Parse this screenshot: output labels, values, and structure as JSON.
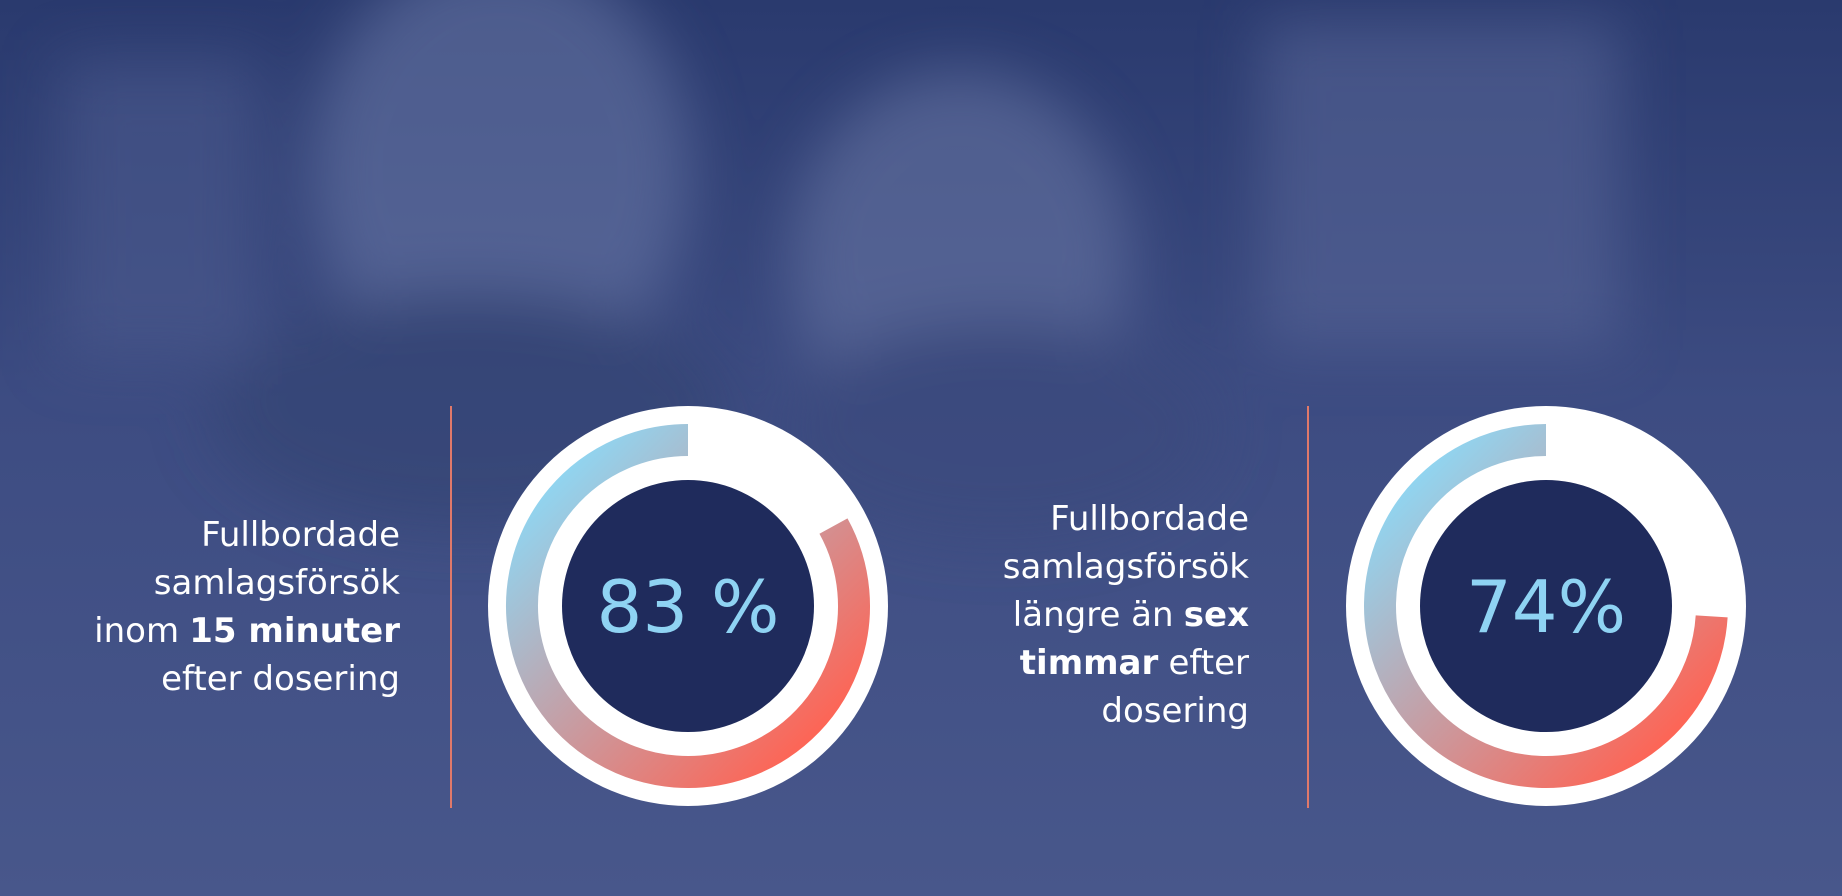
{
  "chart_data": [
    {
      "type": "donut",
      "values": [
        83
      ],
      "value_labels": [
        "83 %"
      ],
      "gradient": [
        "#8fd6f2",
        "#ff6353"
      ],
      "description_lines": [
        [
          {
            "text": "Fullbordade"
          }
        ],
        [
          {
            "text": "samlagsförsök"
          }
        ],
        [
          {
            "text": "inom"
          },
          {
            "text": "15 minuter",
            "bold": true
          }
        ],
        [
          {
            "text": "efter dosering"
          }
        ]
      ]
    },
    {
      "type": "donut",
      "values": [
        74
      ],
      "value_labels": [
        "74%"
      ],
      "gradient": [
        "#8fd6f2",
        "#ff6353"
      ],
      "description_lines": [
        [
          {
            "text": "Fullbordade"
          }
        ],
        [
          {
            "text": "samlagsförsök"
          }
        ],
        [
          {
            "text": "längre än"
          },
          {
            "text": "sex",
            "bold": true
          }
        ],
        [
          {
            "text": "timmar",
            "bold": true
          },
          {
            "text": "efter"
          }
        ],
        [
          {
            "text": "dosering"
          }
        ]
      ]
    }
  ]
}
